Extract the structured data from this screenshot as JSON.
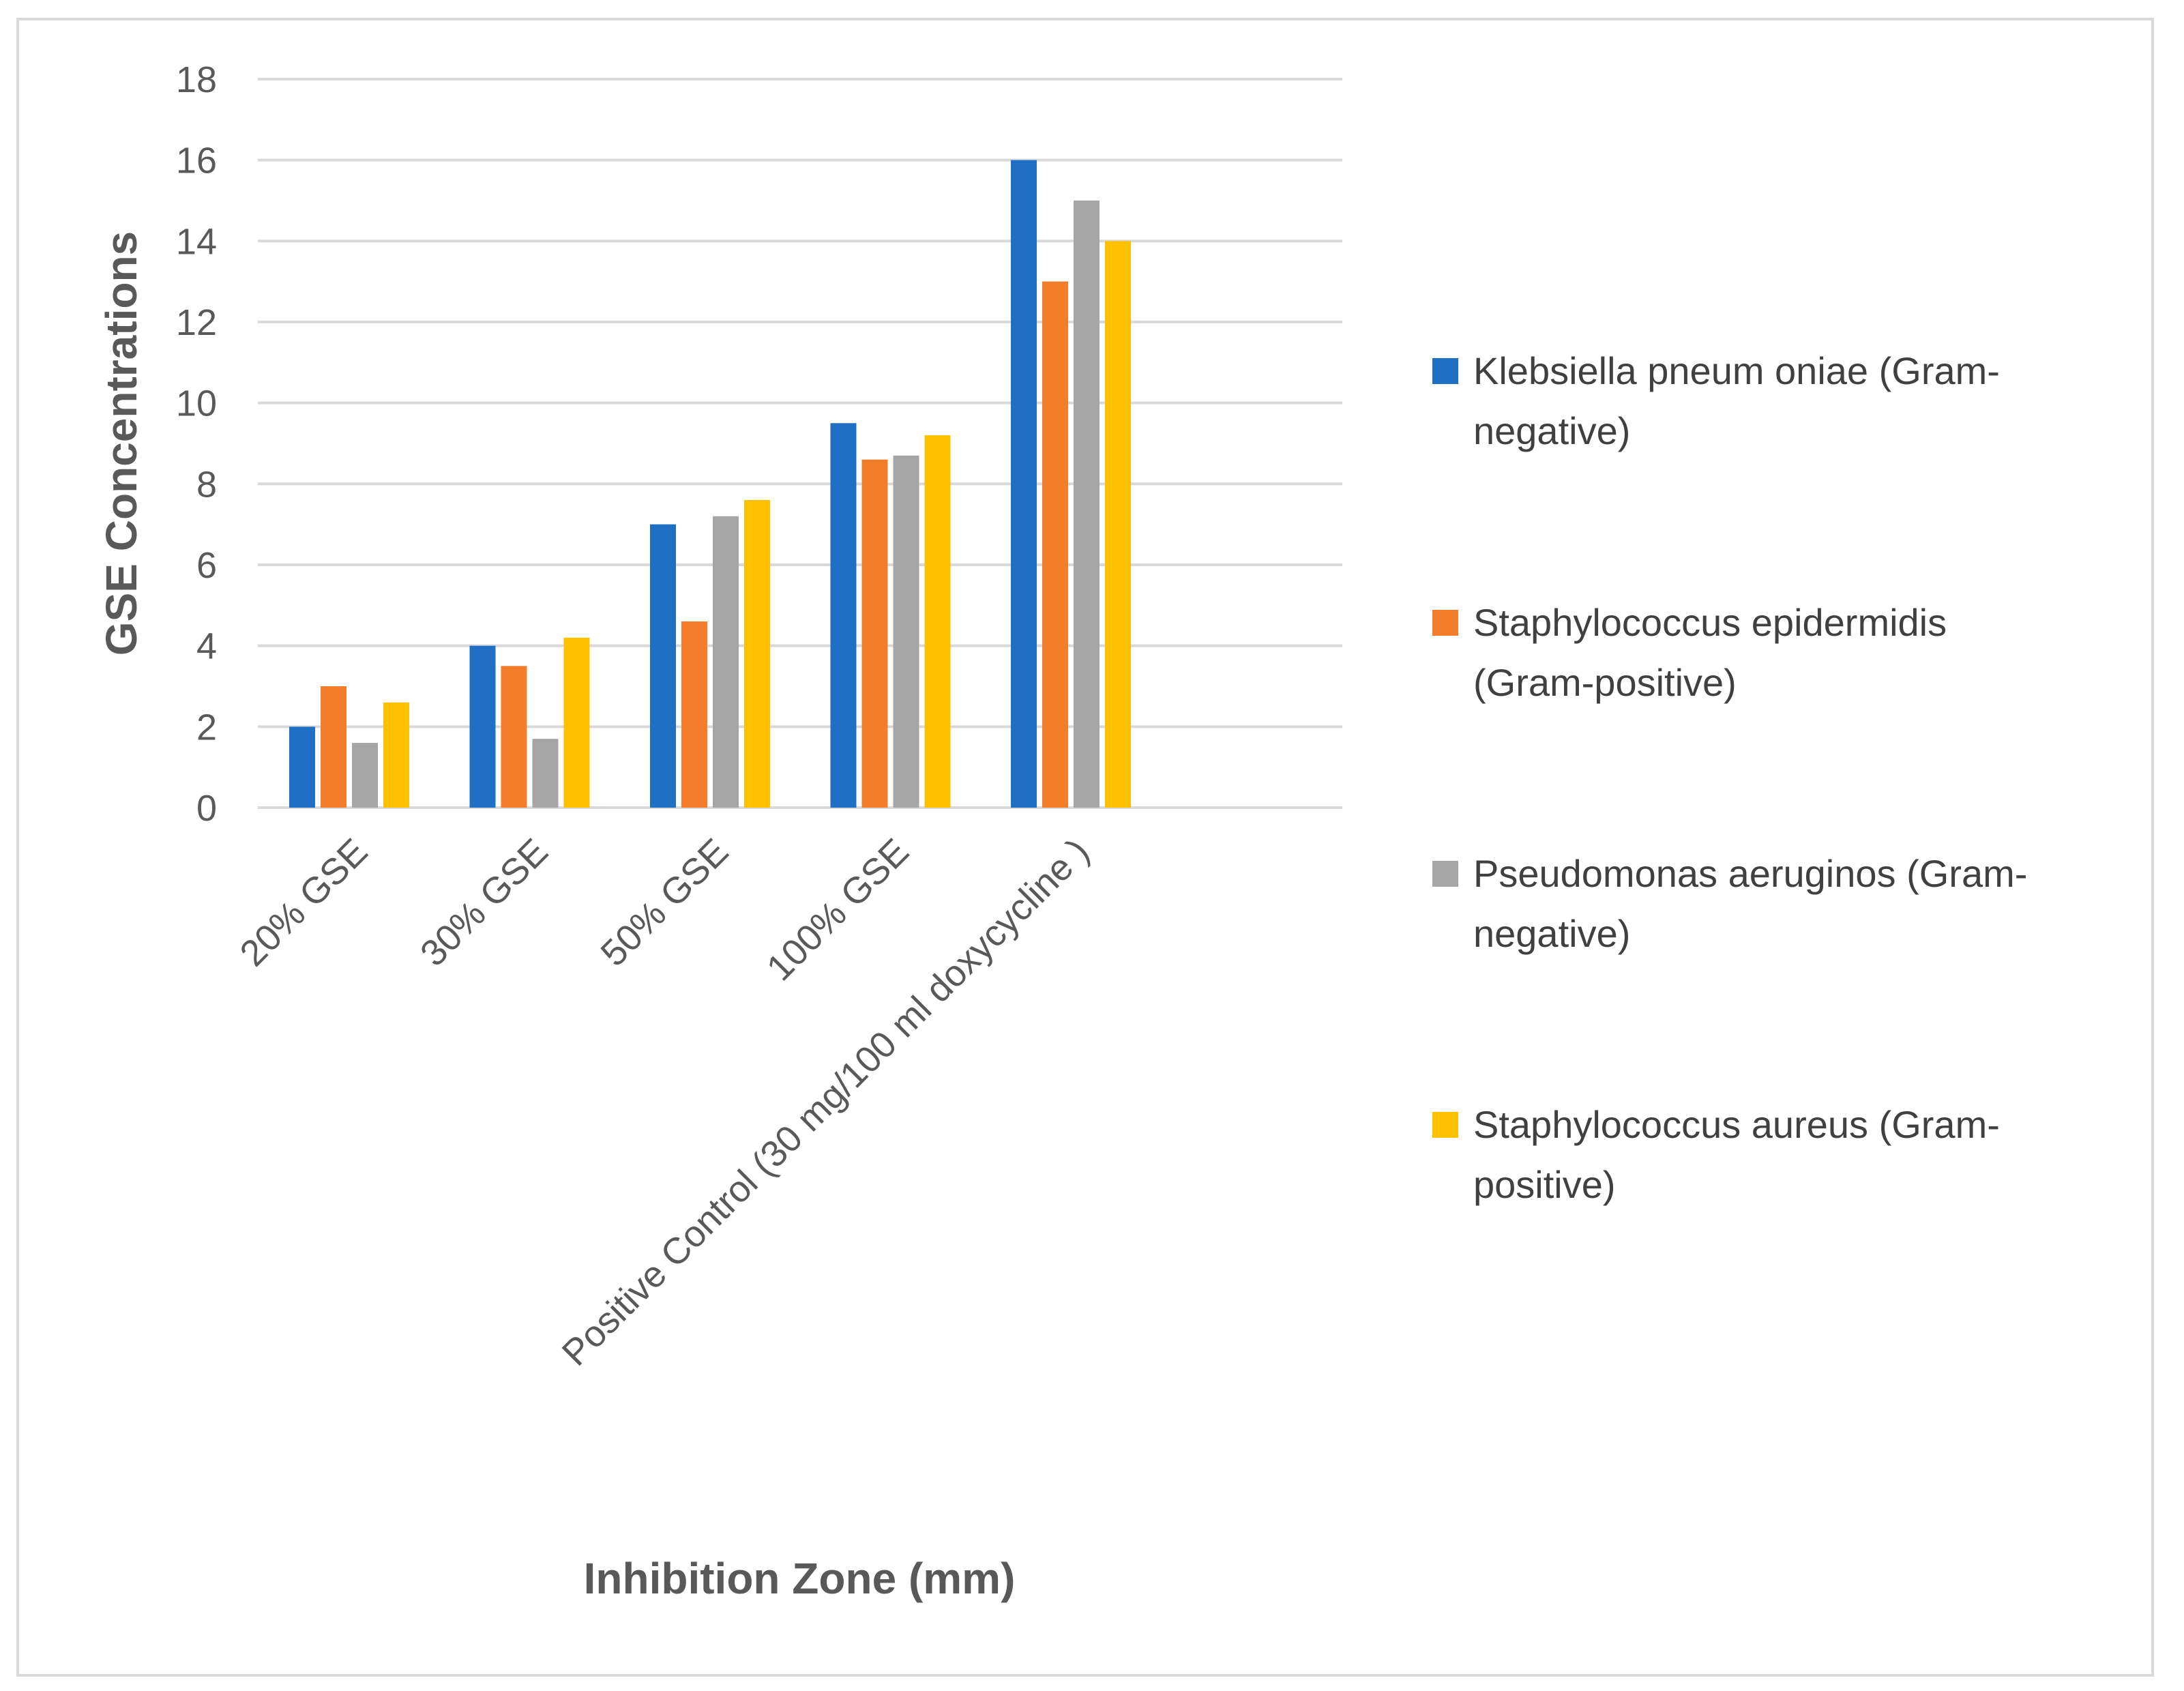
{
  "chart_data": {
    "type": "bar",
    "title": "",
    "xlabel": "Inhibition Zone (mm)",
    "ylabel": "GSE Concentrations",
    "ylim": [
      0,
      18
    ],
    "yticks": [
      0,
      2,
      4,
      6,
      8,
      10,
      12,
      14,
      16,
      18
    ],
    "grid": true,
    "legend_position": "right",
    "categories": [
      "20% GSE",
      "30% GSE",
      "50% GSE",
      "100% GSE",
      "Positive Control (30 mg/100 ml doxycycline )"
    ],
    "series": [
      {
        "name": "Klebsiella pneumoniae (Gram-negative)",
        "legend_lines": [
          "Klebsiella pneum oniae (Gram-",
          "negative)"
        ],
        "color": "#1f6fc4",
        "values": [
          2,
          4,
          7,
          9.5,
          16
        ]
      },
      {
        "name": "Staphylococcus epidermidis (Gram-positive)",
        "legend_lines": [
          "Staphylococcus epidermidis",
          "(Gram-positive)"
        ],
        "color": "#f47d2b",
        "values": [
          3,
          3.5,
          4.6,
          8.6,
          13
        ]
      },
      {
        "name": "Pseudomonas aeruginos (Gram-negative)",
        "legend_lines": [
          "Pseudomonas aeruginos (Gram-",
          "negative)"
        ],
        "color": "#a5a5a5",
        "values": [
          1.6,
          1.7,
          7.2,
          8.7,
          15
        ]
      },
      {
        "name": "Staphylococcus aureus (Gram-positive)",
        "legend_lines": [
          "Staphylococcus aureus  (Gram-",
          "positive)"
        ],
        "color": "#ffc000",
        "values": [
          2.6,
          4.2,
          7.6,
          9.2,
          14
        ]
      }
    ]
  }
}
